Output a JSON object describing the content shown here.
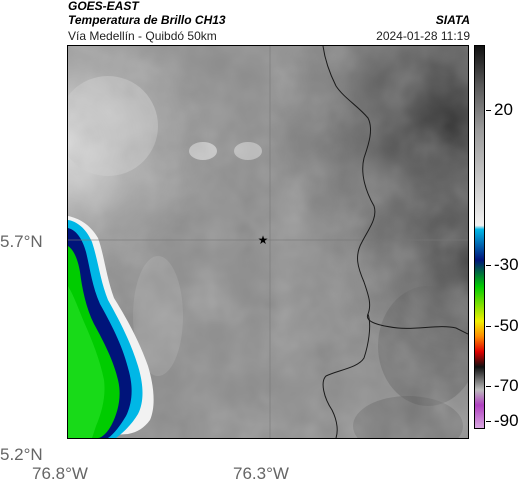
{
  "header": {
    "satellite": "GOES-EAST",
    "product": "Temperatura de Brillo CH13",
    "location": "Vía Medellín - Quibdó 50km",
    "source": "SIATA",
    "timestamp": "2024-01-28 11:19"
  },
  "map": {
    "lat_ticks": [
      {
        "label": "5.7°N"
      },
      {
        "label": "5.2°N"
      }
    ],
    "lon_ticks": [
      {
        "label": "76.8°W"
      },
      {
        "label": "76.3°W"
      }
    ],
    "marker_icon": "star-icon"
  },
  "colorbar": {
    "ticks": [
      {
        "label": "20"
      },
      {
        "label": "-30"
      },
      {
        "label": "-50"
      },
      {
        "label": "-70"
      },
      {
        "label": "-90"
      }
    ],
    "colors": {
      "warm_dark": "#111111",
      "warm_light": "#f2f2f2",
      "cyan": "#00b7e6",
      "blue": "#00147a",
      "green": "#00cc00",
      "yellow": "#f0f000",
      "orange": "#ff8c00",
      "red": "#e00000",
      "black": "#101010",
      "magenta": "#b040c0"
    }
  }
}
